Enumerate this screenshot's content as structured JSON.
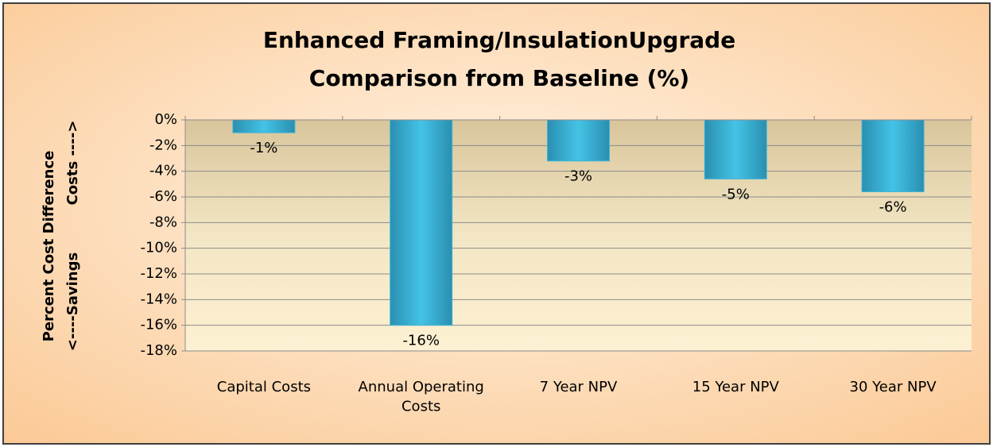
{
  "chart_data": {
    "type": "bar",
    "title": [
      "Enhanced Framing/InsulationUpgrade",
      "Comparison from Baseline (%)"
    ],
    "y_label": "Percent Cost Difference",
    "y_label_low": "<----Savings",
    "y_label_high": "Costs ---->",
    "categories": [
      "Capital Costs",
      "Annual Operating Costs",
      "7 Year NPV",
      "15 Year NPV",
      "30 Year NPV"
    ],
    "values": [
      -1.0,
      -16.0,
      -3.2,
      -4.6,
      -5.6
    ],
    "value_labels": [
      "-1%",
      "-16%",
      "-3%",
      "-5%",
      "-6%"
    ],
    "color": "#3bb6d9",
    "ylim": [
      -18,
      0
    ],
    "yticks": [
      {
        "value": 0,
        "label": "0%"
      },
      {
        "value": -2,
        "label": "-2%"
      },
      {
        "value": -4,
        "label": "-4%"
      },
      {
        "value": -6,
        "label": "-6%"
      },
      {
        "value": -8,
        "label": "-8%"
      },
      {
        "value": -10,
        "label": "-10%"
      },
      {
        "value": -12,
        "label": "-12%"
      },
      {
        "value": -14,
        "label": "-14%"
      },
      {
        "value": -16,
        "label": "-16%"
      },
      {
        "value": -18,
        "label": "-18%"
      }
    ],
    "grid": true
  }
}
